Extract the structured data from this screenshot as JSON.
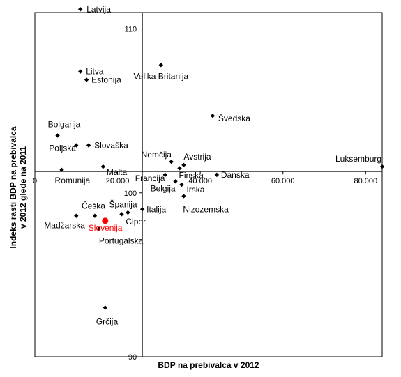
{
  "chart_data": {
    "type": "scatter",
    "xlabel": "BDP na prebivalca v 2012",
    "ylabel_lines": [
      "Indeks rasti BDP na prebivalca",
      "v 2012 glede na 2011"
    ],
    "xlim": [
      0,
      84000
    ],
    "ylim": [
      90,
      111
    ],
    "x_ticks": [
      {
        "value": 0,
        "label": "0"
      },
      {
        "value": 20000,
        "label": "20.000"
      },
      {
        "value": 40000,
        "label": "40.000"
      },
      {
        "value": 60000,
        "label": "60.000"
      },
      {
        "value": 80000,
        "label": "80.000"
      }
    ],
    "y_ticks": [
      {
        "value": 90,
        "label": "90"
      },
      {
        "value": 100,
        "label": "100"
      },
      {
        "value": 110,
        "label": "110"
      }
    ],
    "x_axis_crosses_y": 101.3,
    "y_axis_crosses_x": 26000,
    "highlight_color": "#ff0000",
    "marker_color": "#000000",
    "points": [
      {
        "label": "Latvija",
        "x": 11000,
        "y": 111.2
      },
      {
        "label": "Litva",
        "x": 11000,
        "y": 107.4
      },
      {
        "label": "Estonija",
        "x": 12500,
        "y": 106.9
      },
      {
        "label": "Velika Britanija",
        "x": 30500,
        "y": 107.8
      },
      {
        "label": "Bolgarija",
        "x": 5500,
        "y": 103.5
      },
      {
        "label": "Poljska",
        "x": 10000,
        "y": 102.9
      },
      {
        "label": "Slovaška",
        "x": 13000,
        "y": 102.9
      },
      {
        "label": "Švedska",
        "x": 43000,
        "y": 104.7
      },
      {
        "label": "Nemčija",
        "x": 33000,
        "y": 101.9
      },
      {
        "label": "Avstrija",
        "x": 36000,
        "y": 101.7
      },
      {
        "label": "Finska",
        "x": 35000,
        "y": 101.5
      },
      {
        "label": "Malta",
        "x": 16500,
        "y": 101.6
      },
      {
        "label": "Romunija",
        "x": 6500,
        "y": 101.4
      },
      {
        "label": "Francija",
        "x": 31500,
        "y": 101.1
      },
      {
        "label": "Danska",
        "x": 44000,
        "y": 101.1
      },
      {
        "label": "Luksemburg",
        "x": 84000,
        "y": 101.6
      },
      {
        "label": "Belgija",
        "x": 34000,
        "y": 100.7
      },
      {
        "label": "Irska",
        "x": 35500,
        "y": 100.5
      },
      {
        "label": "Nizozemska",
        "x": 36000,
        "y": 99.8
      },
      {
        "label": "Italija",
        "x": 26000,
        "y": 99.0
      },
      {
        "label": "Španija",
        "x": 21000,
        "y": 98.7
      },
      {
        "label": "Ciper",
        "x": 22500,
        "y": 98.8
      },
      {
        "label": "Češka",
        "x": 14500,
        "y": 98.6
      },
      {
        "label": "Madžarska",
        "x": 10000,
        "y": 98.6
      },
      {
        "label": "Slovenija",
        "x": 17000,
        "y": 98.3,
        "highlight": true
      },
      {
        "label": "Portugalska",
        "x": 15500,
        "y": 97.8
      },
      {
        "label": "Grčija",
        "x": 17000,
        "y": 93.0
      }
    ]
  }
}
